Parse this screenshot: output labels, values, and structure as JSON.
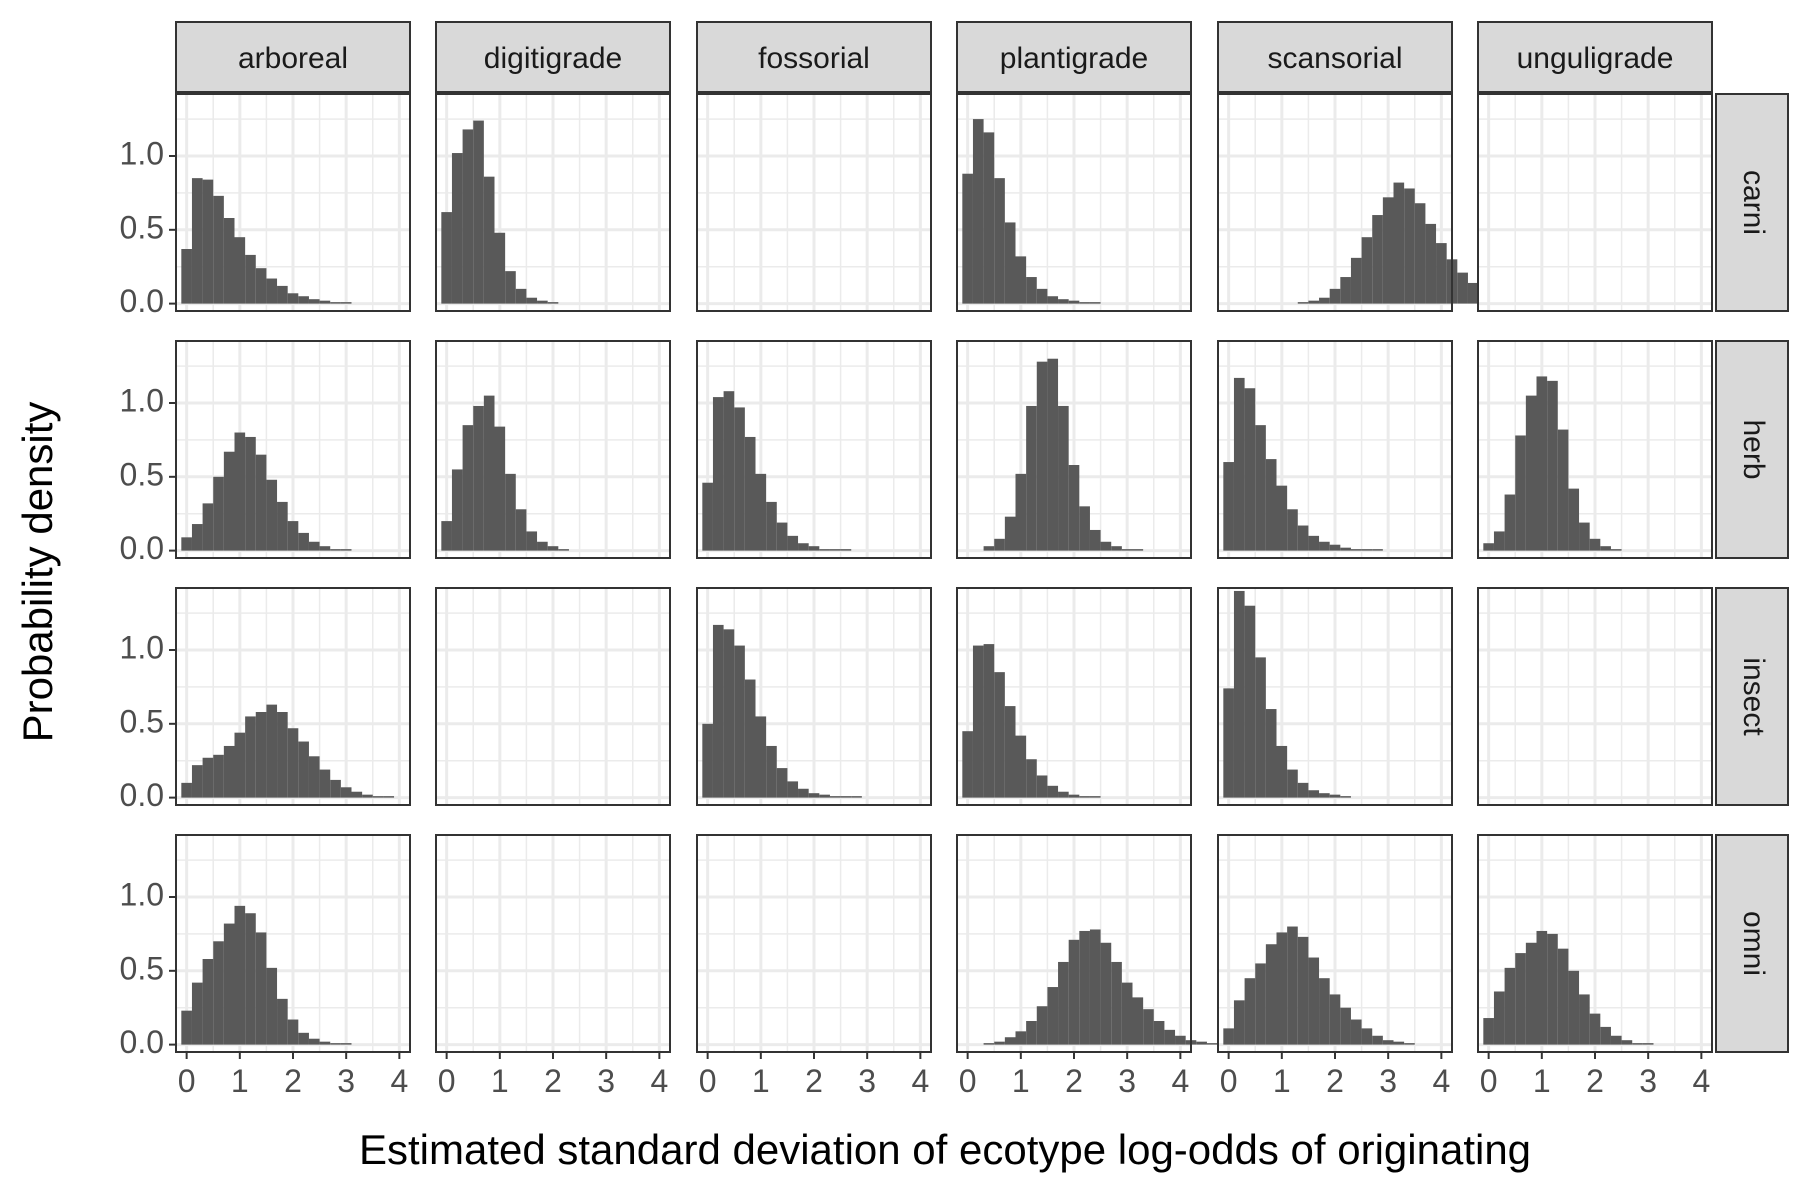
{
  "chart_data": {
    "type": "bar",
    "xlabel": "Estimated standard deviation of ecotype log-odds of originating",
    "ylabel": "Probability density",
    "xlim": [
      -0.2,
      4.2
    ],
    "ylim": [
      -0.05,
      1.42
    ],
    "x_ticks": [
      "0",
      "1",
      "2",
      "3",
      "4"
    ],
    "y_ticks": [
      "0.0",
      "0.5",
      "1.0"
    ],
    "columns": [
      "arboreal",
      "digitigrade",
      "fossorial",
      "plantigrade",
      "scansorial",
      "unguligrade"
    ],
    "rows": [
      "carni",
      "herb",
      "insect",
      "omni"
    ],
    "bin_start": -0.1,
    "bin_width": 0.2,
    "grid": true,
    "panels": {
      "carni": {
        "arboreal": [
          0.37,
          0.85,
          0.84,
          0.73,
          0.58,
          0.45,
          0.33,
          0.24,
          0.17,
          0.12,
          0.07,
          0.05,
          0.03,
          0.02,
          0.01,
          0.01
        ],
        "digitigrade": [
          0.62,
          1.02,
          1.18,
          1.24,
          0.86,
          0.48,
          0.22,
          0.1,
          0.04,
          0.02,
          0.01
        ],
        "fossorial": [],
        "plantigrade": [
          0.88,
          1.25,
          1.16,
          0.85,
          0.55,
          0.32,
          0.18,
          0.1,
          0.05,
          0.03,
          0.02,
          0.01,
          0.01
        ],
        "scansorial": [
          0.0,
          0.0,
          0.0,
          0.0,
          0.0,
          0.0,
          0.0,
          0.01,
          0.02,
          0.04,
          0.1,
          0.18,
          0.31,
          0.45,
          0.6,
          0.72,
          0.82,
          0.78,
          0.68,
          0.54,
          0.41,
          0.3,
          0.21,
          0.14,
          0.09,
          0.05,
          0.03,
          0.02,
          0.01,
          0.01
        ],
        "unguligrade": []
      },
      "herb": {
        "arboreal": [
          0.09,
          0.18,
          0.32,
          0.5,
          0.67,
          0.8,
          0.77,
          0.65,
          0.48,
          0.33,
          0.2,
          0.12,
          0.06,
          0.03,
          0.01,
          0.01
        ],
        "digitigrade": [
          0.2,
          0.55,
          0.85,
          0.98,
          1.05,
          0.84,
          0.52,
          0.28,
          0.13,
          0.06,
          0.03,
          0.01
        ],
        "fossorial": [
          0.46,
          1.04,
          1.08,
          0.97,
          0.77,
          0.52,
          0.33,
          0.19,
          0.1,
          0.05,
          0.03,
          0.01,
          0.01,
          0.01
        ],
        "plantigrade": [
          0.0,
          0.0,
          0.03,
          0.08,
          0.23,
          0.52,
          0.98,
          1.28,
          1.3,
          0.98,
          0.58,
          0.3,
          0.14,
          0.06,
          0.03,
          0.01,
          0.01
        ],
        "scansorial": [
          0.6,
          1.17,
          1.1,
          0.85,
          0.62,
          0.44,
          0.28,
          0.17,
          0.1,
          0.06,
          0.04,
          0.02,
          0.01,
          0.01,
          0.01
        ],
        "unguligrade": [
          0.05,
          0.13,
          0.38,
          0.78,
          1.05,
          1.18,
          1.15,
          0.82,
          0.42,
          0.19,
          0.08,
          0.03,
          0.01
        ]
      },
      "insect": {
        "arboreal": [
          0.1,
          0.22,
          0.27,
          0.29,
          0.35,
          0.44,
          0.55,
          0.58,
          0.63,
          0.58,
          0.47,
          0.38,
          0.28,
          0.19,
          0.12,
          0.07,
          0.04,
          0.02,
          0.01,
          0.01
        ],
        "digitigrade": [],
        "fossorial": [
          0.5,
          1.17,
          1.14,
          1.03,
          0.8,
          0.55,
          0.35,
          0.2,
          0.11,
          0.06,
          0.03,
          0.02,
          0.01,
          0.01,
          0.01
        ],
        "plantigrade": [
          0.45,
          1.03,
          1.04,
          0.85,
          0.62,
          0.42,
          0.26,
          0.15,
          0.08,
          0.04,
          0.02,
          0.01,
          0.01
        ],
        "scansorial": [
          0.74,
          1.4,
          1.3,
          0.95,
          0.6,
          0.35,
          0.19,
          0.1,
          0.05,
          0.03,
          0.02,
          0.01
        ],
        "unguligrade": []
      },
      "omni": {
        "arboreal": [
          0.23,
          0.42,
          0.58,
          0.7,
          0.82,
          0.94,
          0.89,
          0.76,
          0.52,
          0.31,
          0.17,
          0.08,
          0.04,
          0.02,
          0.01,
          0.01
        ],
        "digitigrade": [],
        "fossorial": [],
        "plantigrade": [
          0.0,
          0.0,
          0.01,
          0.02,
          0.05,
          0.09,
          0.16,
          0.26,
          0.39,
          0.56,
          0.71,
          0.77,
          0.78,
          0.69,
          0.56,
          0.42,
          0.32,
          0.24,
          0.16,
          0.1,
          0.06,
          0.03,
          0.02,
          0.01
        ],
        "scansorial": [
          0.11,
          0.3,
          0.45,
          0.55,
          0.68,
          0.76,
          0.8,
          0.73,
          0.59,
          0.45,
          0.34,
          0.25,
          0.17,
          0.11,
          0.06,
          0.03,
          0.02,
          0.01
        ],
        "unguligrade": [
          0.18,
          0.36,
          0.52,
          0.62,
          0.69,
          0.77,
          0.75,
          0.65,
          0.5,
          0.34,
          0.21,
          0.12,
          0.06,
          0.03,
          0.01,
          0.01
        ]
      }
    }
  }
}
